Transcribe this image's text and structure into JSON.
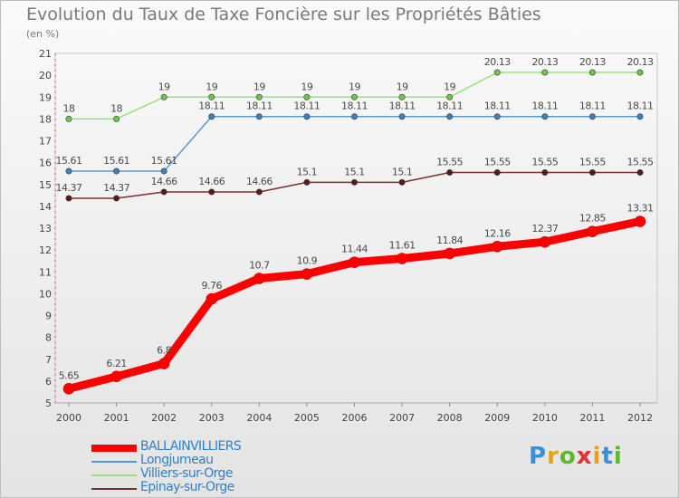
{
  "title": "Evolution du Taux de Taxe Foncière sur les Propriétés Bâties",
  "subtitle": "(en %)",
  "logo": {
    "letters": [
      "P",
      "r",
      "o",
      "x",
      "i",
      "t",
      "i"
    ],
    "colors": [
      "#3a8fd8",
      "#e8a020",
      "#5cb82e",
      "#e53030",
      "#e8a020",
      "#3a8fd8",
      "#5cb82e"
    ]
  },
  "chart_data": {
    "type": "line",
    "x": [
      2000,
      2001,
      2002,
      2003,
      2004,
      2005,
      2006,
      2007,
      2008,
      2009,
      2010,
      2011,
      2012
    ],
    "ylim": [
      5,
      21
    ],
    "yticks": [
      5,
      6,
      7,
      8,
      9,
      10,
      11,
      12,
      13,
      14,
      15,
      16,
      17,
      18,
      19,
      20,
      21
    ],
    "grid": false,
    "legend_position": "bottom-left",
    "series": [
      {
        "name": "BALLAINVILLIERS",
        "color": "#ff0000",
        "width": 9,
        "marker_color": "#ff0000",
        "values": [
          5.65,
          6.21,
          6.8,
          9.76,
          10.7,
          10.9,
          11.44,
          11.61,
          11.84,
          12.16,
          12.37,
          12.85,
          13.31
        ],
        "labels": [
          "5.65",
          "6.21",
          "6.8",
          "9.76",
          "10.7",
          "10.9",
          "11.44",
          "11.61",
          "11.84",
          "12.16",
          "12.37",
          "12.85",
          "13.31"
        ]
      },
      {
        "name": "Longjumeau",
        "color": "#5a9ad0",
        "width": 1.5,
        "marker_color": "#3a7fc0",
        "values": [
          15.61,
          15.61,
          15.61,
          18.11,
          18.11,
          18.11,
          18.11,
          18.11,
          18.11,
          18.11,
          18.11,
          18.11,
          18.11
        ],
        "labels": [
          "15.61",
          "15.61",
          "15.61",
          "18.11",
          "18.11",
          "18.11",
          "18.11",
          "18.11",
          "18.11",
          "18.11",
          "18.11",
          "18.11",
          "18.11"
        ]
      },
      {
        "name": "Villiers-sur-Orge",
        "color": "#99e07a",
        "width": 1.5,
        "marker_color": "#6cc644",
        "values": [
          18,
          18,
          19,
          19,
          19,
          19,
          19,
          19,
          19,
          20.13,
          20.13,
          20.13,
          20.13
        ],
        "labels": [
          "18",
          "18",
          "19",
          "19",
          "19",
          "19",
          "19",
          "19",
          "19",
          "20.13",
          "20.13",
          "20.13",
          "20.13"
        ]
      },
      {
        "name": "Epinay-sur-Orge",
        "color": "#7a3030",
        "width": 1.5,
        "marker_color": "#5a1818",
        "values": [
          14.37,
          14.37,
          14.66,
          14.66,
          14.66,
          15.1,
          15.1,
          15.1,
          15.55,
          15.55,
          15.55,
          15.55,
          15.55
        ],
        "labels": [
          "14.37",
          "14.37",
          "14.66",
          "14.66",
          "14.66",
          "15.1",
          "15.1",
          "15.1",
          "15.55",
          "15.55",
          "15.55",
          "15.55",
          "15.55"
        ]
      }
    ]
  }
}
